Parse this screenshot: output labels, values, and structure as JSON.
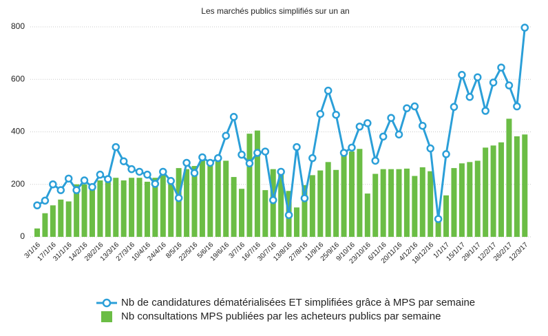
{
  "chart_data": {
    "type": "combo",
    "title": "Les marchés publics simplifiés sur un an",
    "categories": [
      "3/1/16",
      null,
      "17/1/16",
      null,
      "31/1/16",
      null,
      "14/2/16",
      null,
      "28/2/16",
      null,
      "13/3/16",
      null,
      "27/3/16",
      null,
      "10/4/16",
      null,
      "24/4/16",
      null,
      "8/5/16",
      null,
      "22/5/16",
      null,
      "5/6/16",
      null,
      "19/6/16",
      null,
      "3/7/16",
      null,
      "16/7/16",
      null,
      "30/7/16",
      null,
      "13/8/16",
      null,
      "27/8/16",
      null,
      "11/9/16",
      null,
      "25/9/16",
      null,
      "9/10/16",
      null,
      "23/10/16",
      null,
      "6/11/16",
      null,
      "20/11/16",
      null,
      "4/12/16",
      null,
      "18/12/16",
      null,
      "1/1/17",
      null,
      "15/1/17",
      null,
      "29/1/17",
      null,
      "12/2/17",
      null,
      "26/2/17",
      null,
      "12/3/17"
    ],
    "series": [
      {
        "name": "Nb de candidatures dématérialisées ET simplifiées grâce à MPS par semaine",
        "type": "line",
        "color": "#2b9fd8",
        "values": [
          120,
          138,
          200,
          178,
          222,
          178,
          215,
          190,
          237,
          220,
          342,
          288,
          258,
          248,
          237,
          202,
          248,
          213,
          148,
          282,
          243,
          303,
          282,
          300,
          385,
          457,
          313,
          280,
          320,
          325,
          140,
          248,
          83,
          342,
          147,
          300,
          468,
          557,
          465,
          320,
          340,
          420,
          433,
          290,
          382,
          453,
          390,
          490,
          497,
          423,
          337,
          68,
          315,
          495,
          617,
          533,
          608,
          480,
          588,
          645,
          577,
          497,
          797
        ]
      },
      {
        "name": "Nb consultations MPS publiées par les acheteurs publics par semaine",
        "type": "bar",
        "color": "#6bbd45",
        "values": [
          32,
          90,
          120,
          142,
          135,
          200,
          200,
          185,
          215,
          225,
          225,
          215,
          225,
          225,
          210,
          225,
          240,
          212,
          262,
          258,
          270,
          305,
          283,
          300,
          290,
          228,
          183,
          393,
          405,
          178,
          258,
          258,
          175,
          112,
          197,
          235,
          253,
          285,
          255,
          330,
          325,
          335,
          165,
          240,
          258,
          258,
          258,
          260,
          232,
          265,
          250,
          70,
          158,
          262,
          280,
          285,
          290,
          340,
          348,
          360,
          450,
          383,
          390
        ]
      }
    ],
    "ylim": [
      0,
      800
    ],
    "yticks": [
      0,
      200,
      400,
      600,
      800
    ],
    "grid": true
  }
}
